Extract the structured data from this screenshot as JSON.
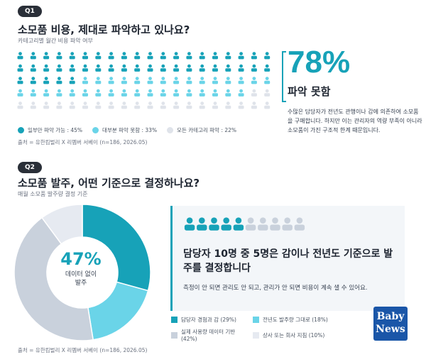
{
  "q1": {
    "badge": "Q1",
    "title": "소모품 비용, 제대로 파악하고 있나요?",
    "subtitle": "카테고리별 월간 비용 파악 여부",
    "big_percent": "78%",
    "big_label": "파악 못함",
    "description": "수많은 담당자가 전년도 관행이나 감에 의존하여 소모품을 구매합니다. 하지만 이는 관리자의 역량 부족이 아니라 소모품이 가진 구조적 한계 때문입니다.",
    "legend": [
      {
        "label": "일부만 파악 가능 : 45%",
        "color": "#17a2b8"
      },
      {
        "label": "대부분 파악 못함 : 33%",
        "color": "#6ad4e8"
      },
      {
        "label": "모든 카테고리 파악 : 22%",
        "color": "#dfe3ea"
      }
    ],
    "source": "출처 = 유한킴벌리 X 리멤버 서베이 (n=186, 2026.05)"
  },
  "q2": {
    "badge": "Q2",
    "title": "소모품 발주, 어떤 기준으로 결정하나요?",
    "subtitle": "매월 소모품 발주량 결정 기준",
    "donut_percent": "47%",
    "donut_label_1": "데이터 없이",
    "donut_label_2": "발주",
    "card_title": "담당자 10명 중 5명은 감이나 전년도 기준으로 발주를 결정합니다",
    "card_desc": "측정이 안 되면 관리도 안 되고, 관리가 안 되면 비용이 계속 샐 수 있어요.",
    "legend": [
      {
        "label": "담당자 경험과 감 (29%)",
        "color": "#17a2b8"
      },
      {
        "label": "전년도 발주량 그대로 (18%)",
        "color": "#6ad4e8"
      },
      {
        "label": "실제 사용량 데이터 기반 (42%)",
        "color": "#c9d1dc"
      },
      {
        "label": "상사 또는 회사 지침 (10%)",
        "color": "#e6eaf1"
      }
    ],
    "source": "출처 = 유한킴벌리 X 리멤버 서베이 (n=186, 2026.05)"
  },
  "logo": {
    "line1": "Baby",
    "line2": "News"
  },
  "chart_data": [
    {
      "type": "pictogram",
      "categories": [
        "일부만 파악 가능",
        "대부분 파악 못함",
        "모든 카테고리 파악"
      ],
      "values": [
        45,
        33,
        22
      ],
      "unit": "%",
      "colors": [
        "#17a2b8",
        "#6ad4e8",
        "#dfe3ea"
      ],
      "icons_total": 100
    },
    {
      "type": "pie",
      "categories": [
        "담당자 경험과 감",
        "전년도 발주량 그대로",
        "실제 사용량 데이터 기반",
        "상사 또는 회사 지침"
      ],
      "values": [
        29,
        18,
        42,
        10
      ],
      "unit": "%",
      "colors": [
        "#17a2b8",
        "#6ad4e8",
        "#c9d1dc",
        "#e6eaf1"
      ],
      "highlight": {
        "value": 47
      }
    },
    {
      "type": "pictogram",
      "values": [
        5,
        5
      ],
      "icons_total": 10,
      "colors": [
        "#17a2b8",
        "#c9d1dc"
      ]
    }
  ]
}
